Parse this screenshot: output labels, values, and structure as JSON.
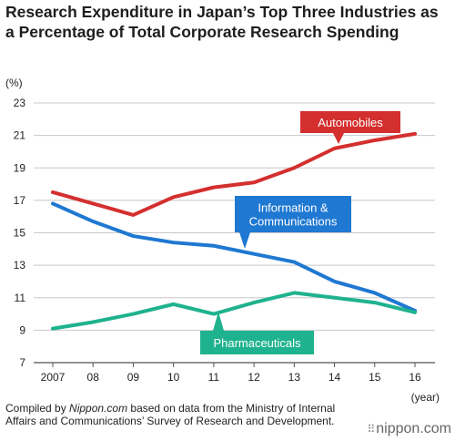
{
  "title": "Research Expenditure in Japan’s Top Three Industries as a Percentage of Total Corporate Research Spending",
  "unit_label": "(%)",
  "xlabel": "(year)",
  "footnote": {
    "prefix": "Compiled by ",
    "source": "Nippon.com",
    "suffix": " based on data from the Ministry of Internal Affairs and Communications’ Survey of Research and Development."
  },
  "brand": "nippon.com",
  "chart_data": {
    "type": "line",
    "x": [
      "2007",
      "08",
      "09",
      "10",
      "11",
      "12",
      "13",
      "14",
      "15",
      "16"
    ],
    "ylim": [
      7,
      23
    ],
    "yticks": [
      7,
      9,
      11,
      13,
      15,
      17,
      19,
      21,
      23
    ],
    "grid": true,
    "series": [
      {
        "name": "Automobiles",
        "color": "#d42f2f",
        "values": [
          17.5,
          16.8,
          16.1,
          17.2,
          17.8,
          18.1,
          19.0,
          20.2,
          20.7,
          21.1
        ]
      },
      {
        "name": "Information & Communications",
        "color": "#1f78d1",
        "values": [
          16.8,
          15.7,
          14.8,
          14.4,
          14.2,
          13.7,
          13.2,
          12.0,
          11.3,
          10.2
        ]
      },
      {
        "name": "Pharmaceuticals",
        "color": "#1fb28e",
        "values": [
          9.1,
          9.5,
          10.0,
          10.6,
          10.0,
          10.7,
          11.3,
          11.0,
          10.7,
          10.1
        ]
      }
    ]
  }
}
